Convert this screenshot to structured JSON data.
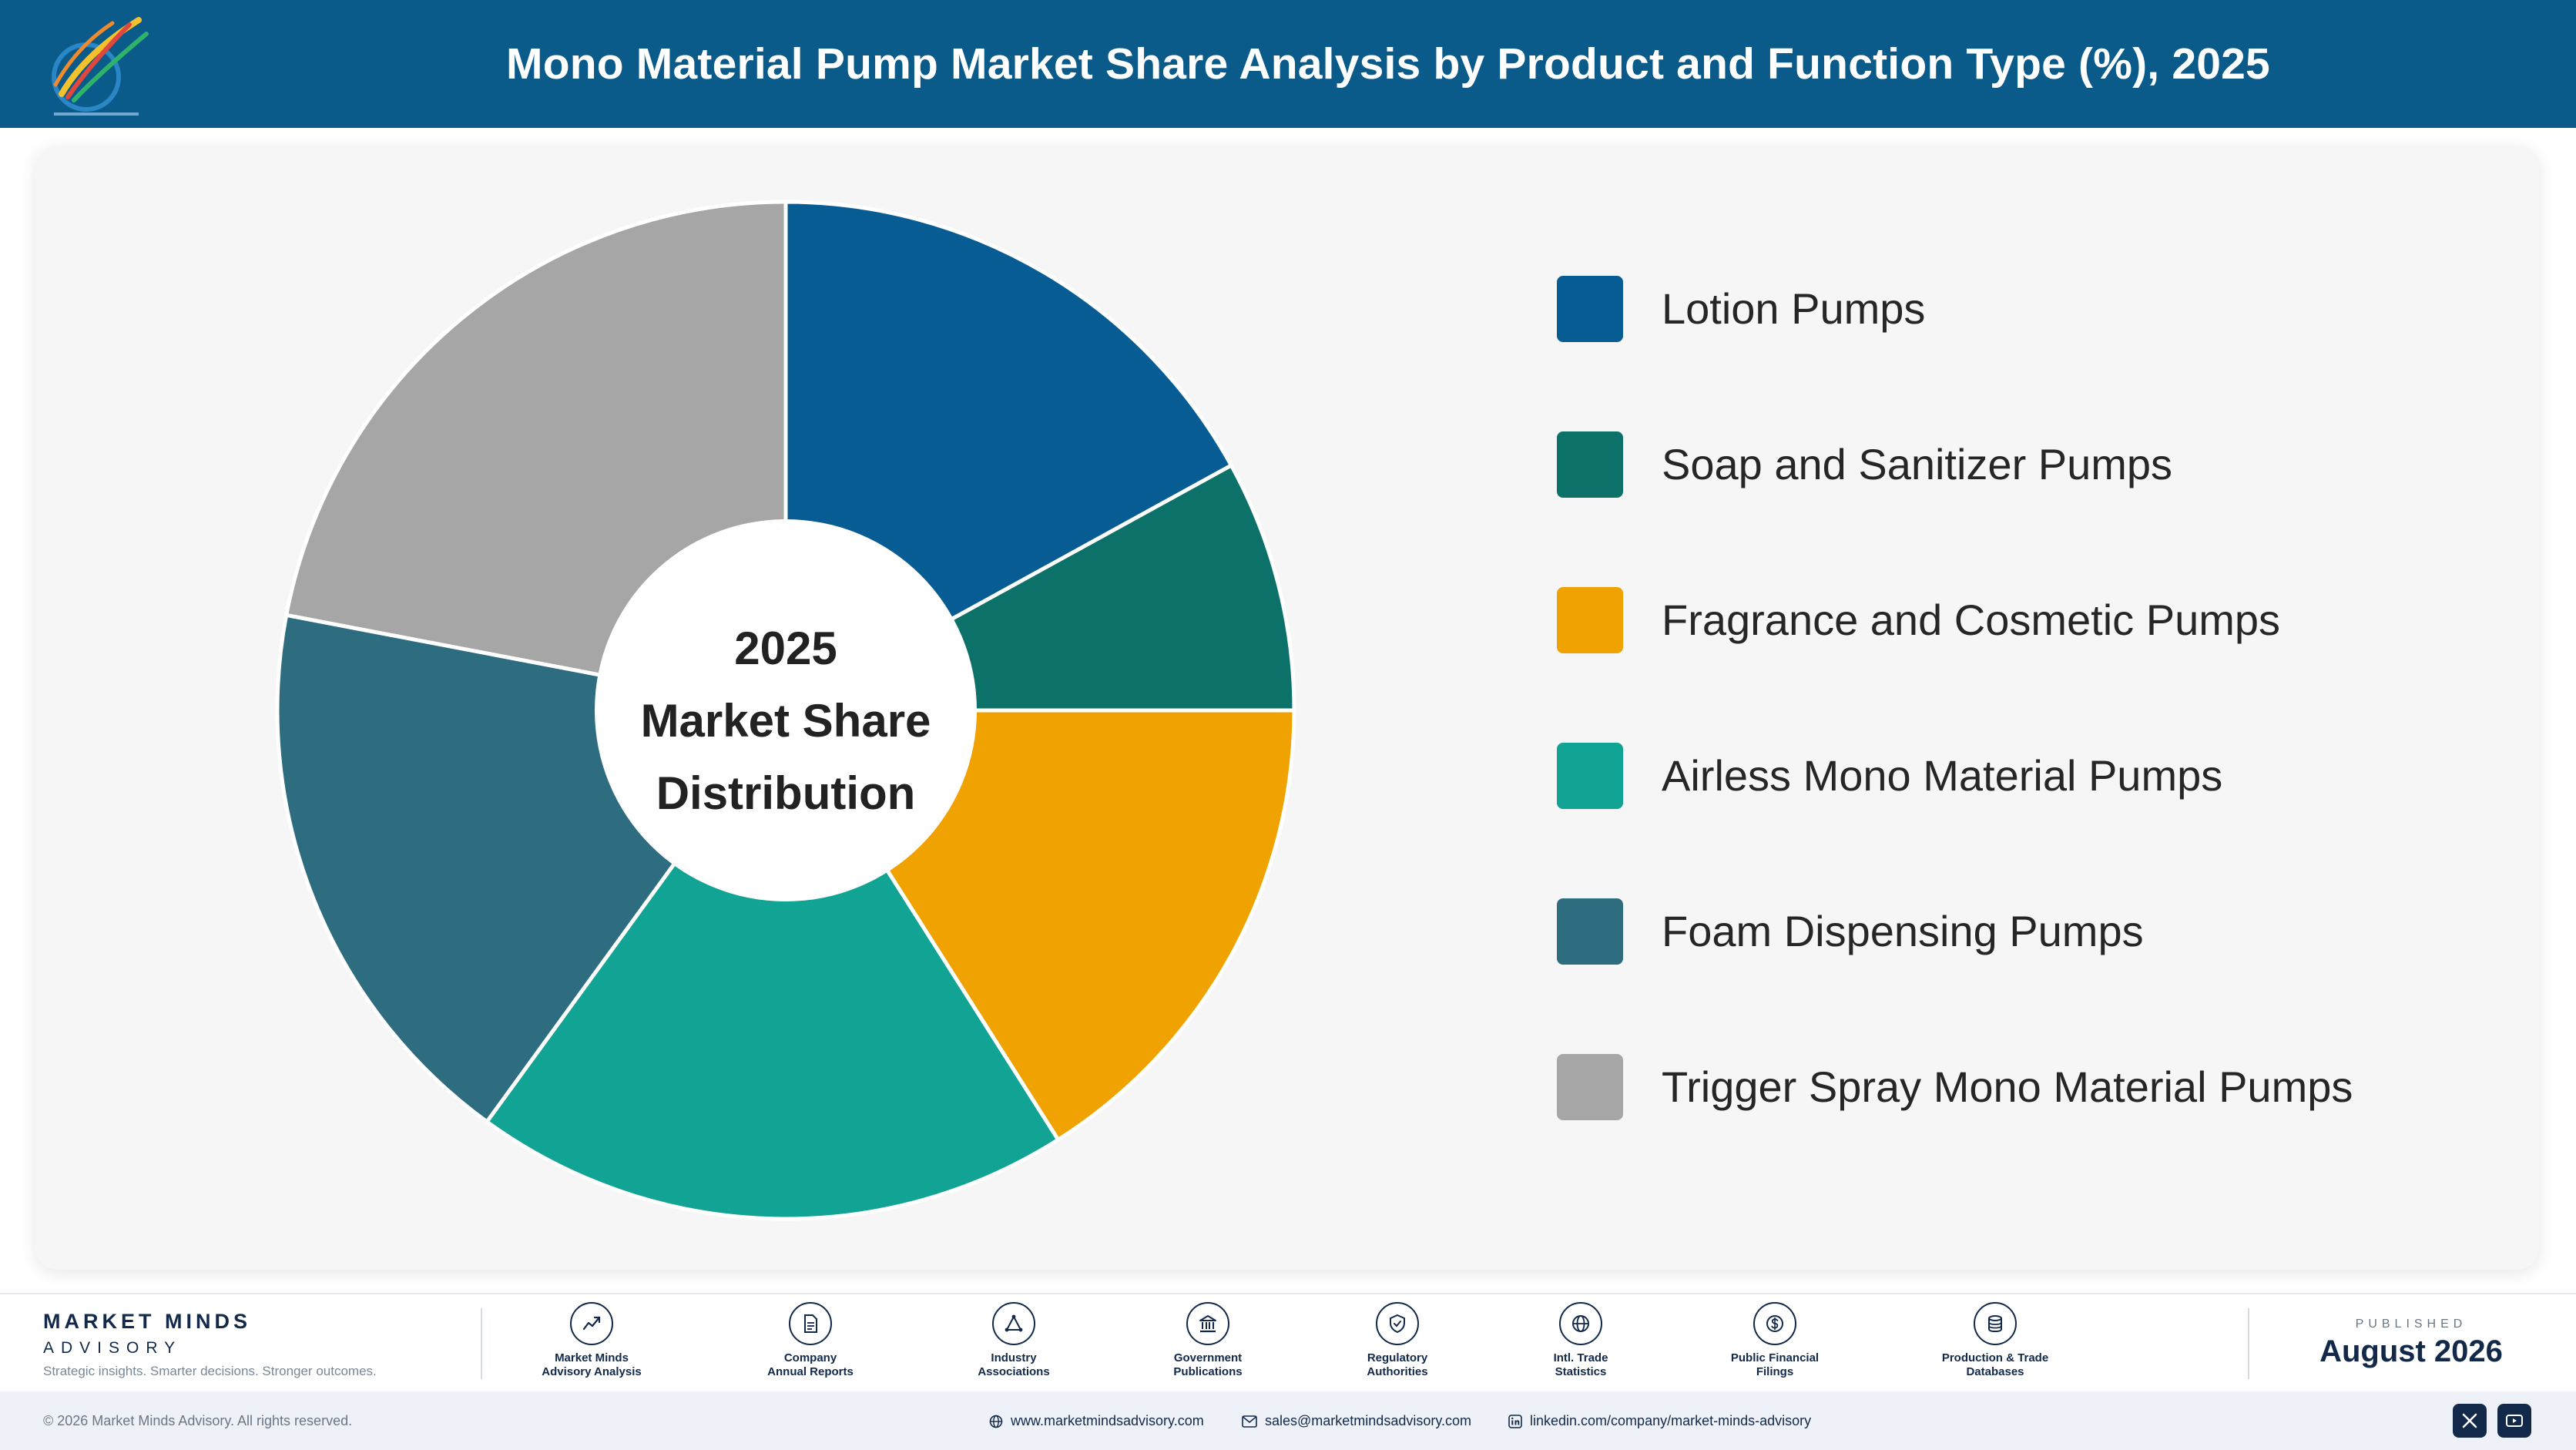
{
  "header": {
    "title": "Mono Material Pump Market Share Analysis by Product and Function Type (%), 2025"
  },
  "colors": {
    "header_bg": "#0a5a8a",
    "card_bg": "#f6f6f6",
    "brand": "#12294a"
  },
  "chart_data": {
    "type": "pie",
    "title": "Mono Material Pump Market Share Analysis by Product and Function Type (%), 2025",
    "center_label": [
      "2025",
      "Market Share",
      "Distribution"
    ],
    "legend_position": "right",
    "categories": [
      "Lotion Pumps",
      "Soap and Sanitizer Pumps",
      "Fragrance and Cosmetic Pumps",
      "Airless Mono Material Pumps",
      "Foam Dispensing Pumps",
      "Trigger Spray Mono Material Pumps"
    ],
    "values": [
      17,
      8,
      16,
      19,
      18,
      22
    ],
    "unit": "%",
    "colors": [
      "#075d93",
      "#0c7168",
      "#f0a300",
      "#11a393",
      "#2e6c80",
      "#a6a6a6"
    ]
  },
  "footer": {
    "brand_name": "MARKET MINDS",
    "brand_sub": "ADVISORY",
    "tagline": "Strategic insights. Smarter decisions. Stronger outcomes.",
    "sources": [
      {
        "icon": "trend-chart-icon",
        "label": [
          "Market Minds",
          "Advisory Analysis"
        ]
      },
      {
        "icon": "document-icon",
        "label": [
          "Company",
          "Annual Reports"
        ]
      },
      {
        "icon": "network-icon",
        "label": [
          "Industry",
          "Associations"
        ]
      },
      {
        "icon": "government-building-icon",
        "label": [
          "Government",
          "Publications"
        ]
      },
      {
        "icon": "shield-check-icon",
        "label": [
          "Regulatory",
          "Authorities"
        ]
      },
      {
        "icon": "globe-icon",
        "label": [
          "Intl. Trade",
          "Statistics"
        ]
      },
      {
        "icon": "currency-icon",
        "label": [
          "Public Financial",
          "Filings"
        ]
      },
      {
        "icon": "database-icon",
        "label": [
          "Production & Trade",
          "Databases"
        ]
      }
    ],
    "published_label": "PUBLISHED",
    "published_date": "August 2026",
    "copyright": "© 2026 Market Minds Advisory. All rights reserved.",
    "website": "www.marketmindsadvisory.com",
    "email": "sales@marketmindsadvisory.com",
    "linkedin": "linkedin.com/company/market-minds-advisory",
    "social": [
      "x-icon",
      "youtube-icon"
    ]
  }
}
